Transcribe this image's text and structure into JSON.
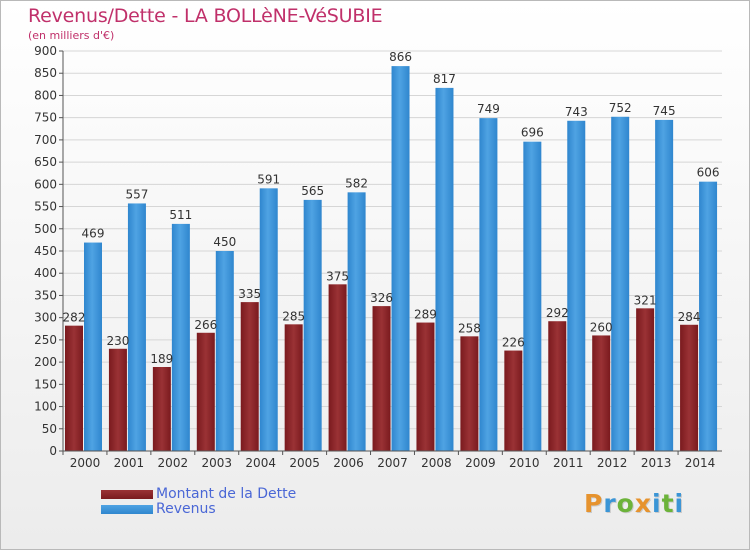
{
  "title": "Revenus/Dette - LA BOLLèNE-VéSUBIE",
  "subtitle": "(en milliers d'€)",
  "legend": {
    "debt_label": "Montant de la Dette",
    "revenue_label": "Revenus"
  },
  "logo": {
    "text": "Proxiti",
    "letters": [
      "P",
      "r",
      "o",
      "x",
      "i",
      "t",
      "i"
    ],
    "colors": [
      "#e6932e",
      "#3a95d6",
      "#6cb33a",
      "#e6932e",
      "#3a95d6",
      "#6cb33a",
      "#3a95d6"
    ]
  },
  "colors": {
    "debt": "#7a1a1e",
    "debt_light": "#9a3235",
    "revenue": "#4fa3e3",
    "revenue_dark": "#2f86ce",
    "title": "#c0306a",
    "legend_text": "#4a67d6"
  },
  "chart_data": {
    "type": "bar",
    "title": "Revenus/Dette - LA BOLLèNE-VéSUBIE",
    "ylabel": "(en milliers d'€)",
    "xlabel": "",
    "ylim": [
      0,
      900
    ],
    "yticks": [
      0,
      50,
      100,
      150,
      200,
      250,
      300,
      350,
      400,
      450,
      500,
      550,
      600,
      650,
      700,
      750,
      800,
      850,
      900
    ],
    "grid": true,
    "legend": "bottom-left",
    "categories": [
      "2000",
      "2001",
      "2002",
      "2003",
      "2004",
      "2005",
      "2006",
      "2007",
      "2008",
      "2009",
      "2010",
      "2011",
      "2012",
      "2013",
      "2014"
    ],
    "series": [
      {
        "name": "Montant de la Dette",
        "values": [
          282,
          230,
          189,
          266,
          335,
          285,
          375,
          326,
          289,
          258,
          226,
          292,
          260,
          321,
          284
        ]
      },
      {
        "name": "Revenus",
        "values": [
          469,
          557,
          511,
          450,
          591,
          565,
          582,
          866,
          817,
          749,
          696,
          743,
          752,
          745,
          606
        ]
      }
    ]
  }
}
